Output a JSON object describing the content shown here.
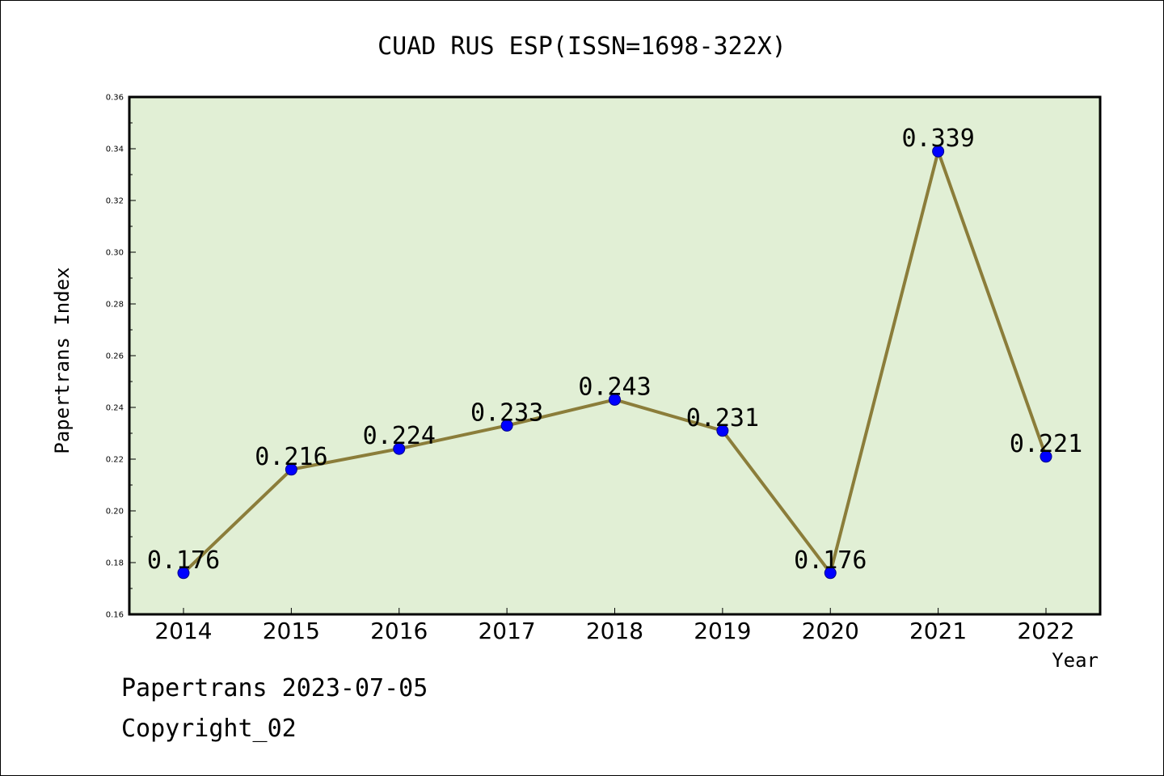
{
  "colors": {
    "plot_background": "#e1efd5",
    "line": "#8b7d3a",
    "marker": "#0000ff",
    "frame": "#000000"
  },
  "chart_data": {
    "type": "line",
    "title": "CUAD RUS ESP(ISSN=1698-322X)",
    "xlabel": "Year",
    "ylabel": "Papertrans Index",
    "categories": [
      "2014",
      "2015",
      "2016",
      "2017",
      "2018",
      "2019",
      "2020",
      "2021",
      "2022"
    ],
    "series": [
      {
        "values": [
          0.176,
          0.216,
          0.224,
          0.233,
          0.243,
          0.231,
          0.176,
          0.339,
          0.221
        ],
        "data_labels": [
          "0.176",
          "0.216",
          "0.224",
          "0.233",
          "0.243",
          "0.231",
          "0.176",
          "0.339",
          "0.221"
        ]
      }
    ],
    "ylim": [
      0.16,
      0.36
    ],
    "y_ticks": [
      "0.16",
      "0.18",
      "0.20",
      "0.22",
      "0.24",
      "0.26",
      "0.28",
      "0.30",
      "0.32",
      "0.34",
      "0.36"
    ],
    "grid": false,
    "legend": "none"
  },
  "footer": {
    "line1": "Papertrans 2023-07-05",
    "line2": "Copyright_02"
  }
}
